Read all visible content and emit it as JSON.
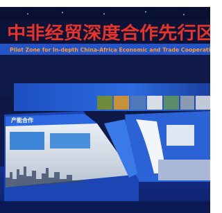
{
  "sign": {
    "title": "中非经贸深度合作先行区",
    "subtitle": "Pilot Zone for In-depth China-Africa Economic and Trade Cooperation"
  },
  "panel": {
    "heading": "产能合作"
  }
}
